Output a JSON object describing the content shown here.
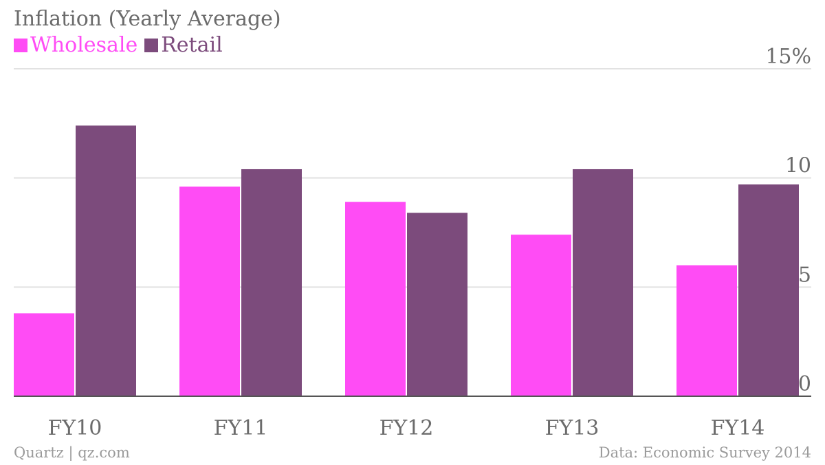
{
  "chart_data": {
    "type": "bar",
    "title": "Inflation (Yearly Average)",
    "categories": [
      "FY10",
      "FY11",
      "FY12",
      "FY13",
      "FY14"
    ],
    "series": [
      {
        "name": "Wholesale",
        "color": "#ff4cf5",
        "values": [
          3.8,
          9.6,
          8.9,
          7.4,
          6.0
        ]
      },
      {
        "name": "Retail",
        "color": "#7c4b7c",
        "values": [
          12.4,
          10.4,
          8.4,
          10.4,
          9.7
        ]
      }
    ],
    "ylim": [
      0,
      15
    ],
    "yticks": [
      {
        "value": 0,
        "label": "0"
      },
      {
        "value": 5,
        "label": "5"
      },
      {
        "value": 10,
        "label": "10"
      },
      {
        "value": 15,
        "label": "15%"
      }
    ],
    "grid": true,
    "legend_position": "top-left"
  },
  "footer": {
    "source_left": "Quartz | qz.com",
    "source_right": "Data: Economic Survey 2014"
  }
}
